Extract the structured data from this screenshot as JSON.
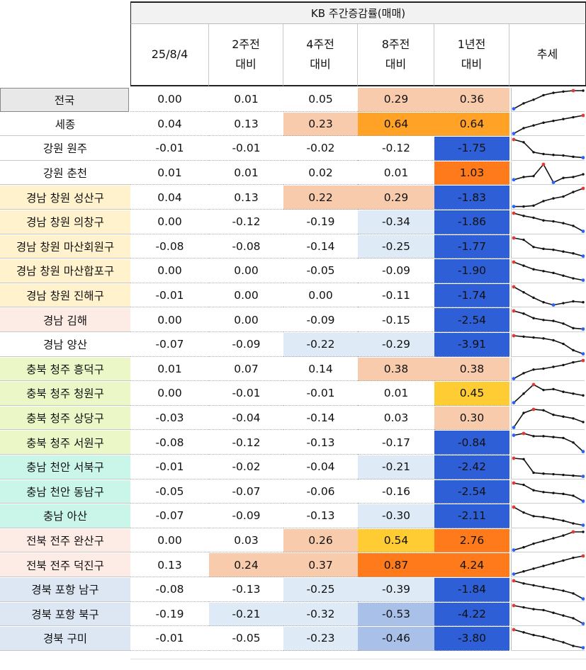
{
  "title": "KB 주간증감률(매매)",
  "headers": [
    {
      "line1": "25/8/4",
      "line2": ""
    },
    {
      "line1": "2주전",
      "line2": "대비"
    },
    {
      "line1": "4주전",
      "line2": "대비"
    },
    {
      "line1": "8주전",
      "line2": "대비"
    },
    {
      "line1": "1년전",
      "line2": "대비"
    },
    {
      "line1": "추세",
      "line2": ""
    }
  ],
  "colors": {
    "region_national": "#e8e8e8",
    "region_white": "#ffffff",
    "region_gyeongnam_changwon": "#fff2cc",
    "region_gyeongnam_other": "#fdece6",
    "region_chungbuk": "#ebf7c7",
    "region_chungnam": "#c9f6e9",
    "region_jeonbuk": "#fdece6",
    "region_gyeongbuk": "#dde7f3",
    "val_peach": "#f8cbad",
    "val_orange": "#ffa226",
    "val_darkorange": "#ff7a1a",
    "val_yellow": "#ffcc33",
    "val_lightblue": "#deebf7",
    "val_midblue": "#a9c1e8",
    "val_blue": "#2e5fd6",
    "spark_line": "#111111",
    "spark_start": "#2962ff",
    "spark_max": "#e53935"
  },
  "rows": [
    {
      "region": "전국",
      "rbg": "region_national",
      "values": [
        "0.00",
        "0.01",
        "0.05",
        "0.29",
        "0.36"
      ],
      "bg": [
        "",
        "",
        "",
        "val_peach",
        "val_peach"
      ],
      "spark": [
        0.0,
        0.3,
        0.5,
        0.75,
        0.88,
        0.95,
        1.0,
        1.0
      ],
      "min_end": "start",
      "max_end": "end"
    },
    {
      "region": "세종",
      "rbg": "region_white",
      "values": [
        "0.04",
        "0.13",
        "0.23",
        "0.64",
        "0.64"
      ],
      "bg": [
        "",
        "",
        "val_peach",
        "val_orange",
        "val_orange"
      ],
      "spark": [
        0.0,
        0.3,
        0.45,
        0.6,
        0.7,
        0.8,
        0.9,
        1.0
      ],
      "min_end": "start",
      "max_end": "end"
    },
    {
      "region": "강원 원주",
      "rbg": "region_white",
      "values": [
        "-0.01",
        "-0.01",
        "-0.02",
        "-0.12",
        "-1.75"
      ],
      "bg": [
        "",
        "",
        "",
        "",
        "val_blue"
      ],
      "spark": [
        1.0,
        0.85,
        0.3,
        0.2,
        0.15,
        0.12,
        0.05,
        0.0
      ],
      "min_end": "end",
      "max_end": "start"
    },
    {
      "region": "강원 춘천",
      "rbg": "region_white",
      "values": [
        "0.01",
        "0.01",
        "0.02",
        "0.01",
        "1.03"
      ],
      "bg": [
        "",
        "",
        "",
        "",
        "val_darkorange"
      ],
      "spark": [
        0.15,
        0.3,
        0.35,
        1.0,
        0.0,
        0.25,
        0.3,
        0.45
      ],
      "min_end": "mid",
      "max_end": "mid"
    },
    {
      "region": "경남 창원 성산구",
      "rbg": "region_gyeongnam_changwon",
      "values": [
        "0.04",
        "0.13",
        "0.22",
        "0.29",
        "-1.83"
      ],
      "bg": [
        "",
        "",
        "val_peach",
        "val_peach",
        "val_blue"
      ],
      "spark": [
        0.0,
        0.0,
        0.05,
        0.3,
        0.45,
        0.55,
        0.8,
        1.0
      ],
      "min_end": "start",
      "max_end": "end"
    },
    {
      "region": "경남 창원 의창구",
      "rbg": "region_gyeongnam_changwon",
      "values": [
        "0.00",
        "-0.12",
        "-0.19",
        "-0.34",
        "-1.86"
      ],
      "bg": [
        "",
        "",
        "",
        "val_lightblue",
        "val_blue"
      ],
      "spark": [
        1.0,
        0.85,
        0.75,
        0.6,
        0.55,
        0.45,
        0.3,
        0.0
      ],
      "min_end": "end",
      "max_end": "start"
    },
    {
      "region": "경남 창원 마산회원구",
      "rbg": "region_gyeongnam_changwon",
      "values": [
        "-0.08",
        "-0.08",
        "-0.14",
        "-0.25",
        "-1.77"
      ],
      "bg": [
        "",
        "",
        "",
        "val_lightblue",
        "val_blue"
      ],
      "spark": [
        1.0,
        0.9,
        0.5,
        0.4,
        0.35,
        0.25,
        0.15,
        0.0
      ],
      "min_end": "end",
      "max_end": "start"
    },
    {
      "region": "경남 창원 마산합포구",
      "rbg": "region_gyeongnam_changwon",
      "values": [
        "0.00",
        "0.00",
        "-0.05",
        "-0.09",
        "-1.90"
      ],
      "bg": [
        "",
        "",
        "",
        "",
        "val_blue"
      ],
      "spark": [
        1.0,
        0.8,
        0.6,
        0.5,
        0.4,
        0.25,
        0.1,
        0.0
      ],
      "min_end": "end",
      "max_end": "start"
    },
    {
      "region": "경남 창원 진해구",
      "rbg": "region_gyeongnam_changwon",
      "values": [
        "-0.01",
        "0.00",
        "0.00",
        "-0.11",
        "-1.74"
      ],
      "bg": [
        "",
        "",
        "",
        "",
        "val_blue"
      ],
      "spark": [
        1.0,
        0.7,
        0.4,
        0.15,
        0.0,
        0.1,
        0.2,
        0.15
      ],
      "min_end": "mid",
      "max_end": "start"
    },
    {
      "region": "경남 김해",
      "rbg": "region_gyeongnam_other",
      "values": [
        "0.00",
        "0.00",
        "-0.09",
        "-0.15",
        "-2.54"
      ],
      "bg": [
        "",
        "",
        "",
        "",
        "val_blue"
      ],
      "spark": [
        1.0,
        0.85,
        0.6,
        0.5,
        0.45,
        0.3,
        0.05,
        0.0
      ],
      "min_end": "end",
      "max_end": "start"
    },
    {
      "region": "경남 양산",
      "rbg": "region_white",
      "values": [
        "-0.07",
        "-0.09",
        "-0.22",
        "-0.29",
        "-3.91"
      ],
      "bg": [
        "",
        "",
        "val_lightblue",
        "val_lightblue",
        "val_blue"
      ],
      "spark": [
        1.0,
        0.95,
        0.9,
        0.85,
        0.75,
        0.55,
        0.2,
        0.0
      ],
      "min_end": "end",
      "max_end": "start"
    },
    {
      "region": "충북 청주 흥덕구",
      "rbg": "region_chungbuk",
      "values": [
        "0.01",
        "0.07",
        "0.14",
        "0.38",
        "0.38"
      ],
      "bg": [
        "",
        "",
        "",
        "val_peach",
        "val_peach"
      ],
      "spark": [
        0.0,
        0.3,
        0.5,
        0.55,
        0.65,
        0.75,
        0.9,
        1.0
      ],
      "min_end": "start",
      "max_end": "end"
    },
    {
      "region": "충북 청주 청원구",
      "rbg": "region_chungbuk",
      "values": [
        "0.00",
        "-0.01",
        "-0.01",
        "0.01",
        "0.45"
      ],
      "bg": [
        "",
        "",
        "",
        "",
        "val_yellow"
      ],
      "spark": [
        0.0,
        0.5,
        1.0,
        0.7,
        0.75,
        0.6,
        0.5,
        0.4
      ],
      "min_end": "start",
      "max_end": "mid"
    },
    {
      "region": "충북 청주 상당구",
      "rbg": "region_chungbuk",
      "values": [
        "-0.03",
        "-0.04",
        "-0.14",
        "0.03",
        "0.30"
      ],
      "bg": [
        "",
        "",
        "",
        "",
        "val_peach"
      ],
      "spark": [
        0.0,
        0.8,
        1.0,
        0.95,
        0.7,
        0.6,
        0.5,
        0.3
      ],
      "min_end": "start",
      "max_end": "mid"
    },
    {
      "region": "충북 청주 서원구",
      "rbg": "region_chungbuk",
      "values": [
        "-0.08",
        "-0.12",
        "-0.13",
        "-0.17",
        "-0.84"
      ],
      "bg": [
        "",
        "",
        "",
        "",
        "val_blue"
      ],
      "spark": [
        0.9,
        1.0,
        0.85,
        0.85,
        0.8,
        0.75,
        0.5,
        0.0
      ],
      "min_end": "end",
      "max_end": "mid"
    },
    {
      "region": "충남 천안 서북구",
      "rbg": "region_chungnam",
      "values": [
        "-0.01",
        "-0.02",
        "-0.04",
        "-0.21",
        "-2.42"
      ],
      "bg": [
        "",
        "",
        "",
        "val_lightblue",
        "val_blue"
      ],
      "spark": [
        1.0,
        0.95,
        0.2,
        0.15,
        0.12,
        0.08,
        0.04,
        0.0
      ],
      "min_end": "end",
      "max_end": "start"
    },
    {
      "region": "충남 천안 동남구",
      "rbg": "region_chungnam",
      "values": [
        "-0.05",
        "-0.07",
        "-0.06",
        "-0.16",
        "-2.54"
      ],
      "bg": [
        "",
        "",
        "",
        "",
        "val_blue"
      ],
      "spark": [
        1.0,
        0.9,
        0.6,
        0.5,
        0.45,
        0.4,
        0.3,
        0.0
      ],
      "min_end": "end",
      "max_end": "start"
    },
    {
      "region": "충남 아산",
      "rbg": "region_chungnam",
      "values": [
        "-0.07",
        "-0.09",
        "-0.13",
        "-0.30",
        "-2.11"
      ],
      "bg": [
        "",
        "",
        "",
        "val_lightblue",
        "val_blue"
      ],
      "spark": [
        1.0,
        0.7,
        0.5,
        0.45,
        0.35,
        0.25,
        0.1,
        0.0
      ],
      "min_end": "end",
      "max_end": "start"
    },
    {
      "region": "전북 전주 완산구",
      "rbg": "region_jeonbuk",
      "values": [
        "0.00",
        "0.03",
        "0.26",
        "0.54",
        "2.76"
      ],
      "bg": [
        "",
        "",
        "val_peach",
        "val_yellow",
        "val_darkorange"
      ],
      "spark": [
        0.0,
        0.15,
        0.35,
        0.5,
        0.65,
        0.8,
        1.0,
        1.0
      ],
      "min_end": "start",
      "max_end": "end"
    },
    {
      "region": "전북 전주 덕진구",
      "rbg": "region_jeonbuk",
      "values": [
        "0.13",
        "0.24",
        "0.37",
        "0.87",
        "4.24"
      ],
      "bg": [
        "",
        "val_peach",
        "val_peach",
        "val_darkorange",
        "val_darkorange"
      ],
      "spark": [
        0.0,
        0.15,
        0.3,
        0.45,
        0.6,
        0.75,
        0.9,
        1.0
      ],
      "min_end": "start",
      "max_end": "end"
    },
    {
      "region": "경북 포항 남구",
      "rbg": "region_gyeongbuk",
      "values": [
        "-0.08",
        "-0.13",
        "-0.25",
        "-0.39",
        "-1.84"
      ],
      "bg": [
        "",
        "",
        "val_lightblue",
        "val_lightblue",
        "val_blue"
      ],
      "spark": [
        1.0,
        0.85,
        0.75,
        0.65,
        0.55,
        0.45,
        0.3,
        0.0
      ],
      "min_end": "end",
      "max_end": "start"
    },
    {
      "region": "경북 포항 북구",
      "rbg": "region_gyeongbuk",
      "values": [
        "-0.19",
        "-0.21",
        "-0.32",
        "-0.53",
        "-4.22"
      ],
      "bg": [
        "",
        "val_lightblue",
        "val_lightblue",
        "val_midblue",
        "val_blue"
      ],
      "spark": [
        1.0,
        0.9,
        0.8,
        0.75,
        0.6,
        0.45,
        0.3,
        0.0
      ],
      "min_end": "end",
      "max_end": "start"
    },
    {
      "region": "경북 구미",
      "rbg": "region_gyeongbuk",
      "values": [
        "-0.01",
        "-0.05",
        "-0.23",
        "-0.46",
        "-3.80"
      ],
      "bg": [
        "",
        "",
        "val_lightblue",
        "val_midblue",
        "val_blue"
      ],
      "spark": [
        1.0,
        0.85,
        0.7,
        0.6,
        0.45,
        0.3,
        0.1,
        0.0
      ],
      "min_end": "end",
      "max_end": "start"
    }
  ]
}
